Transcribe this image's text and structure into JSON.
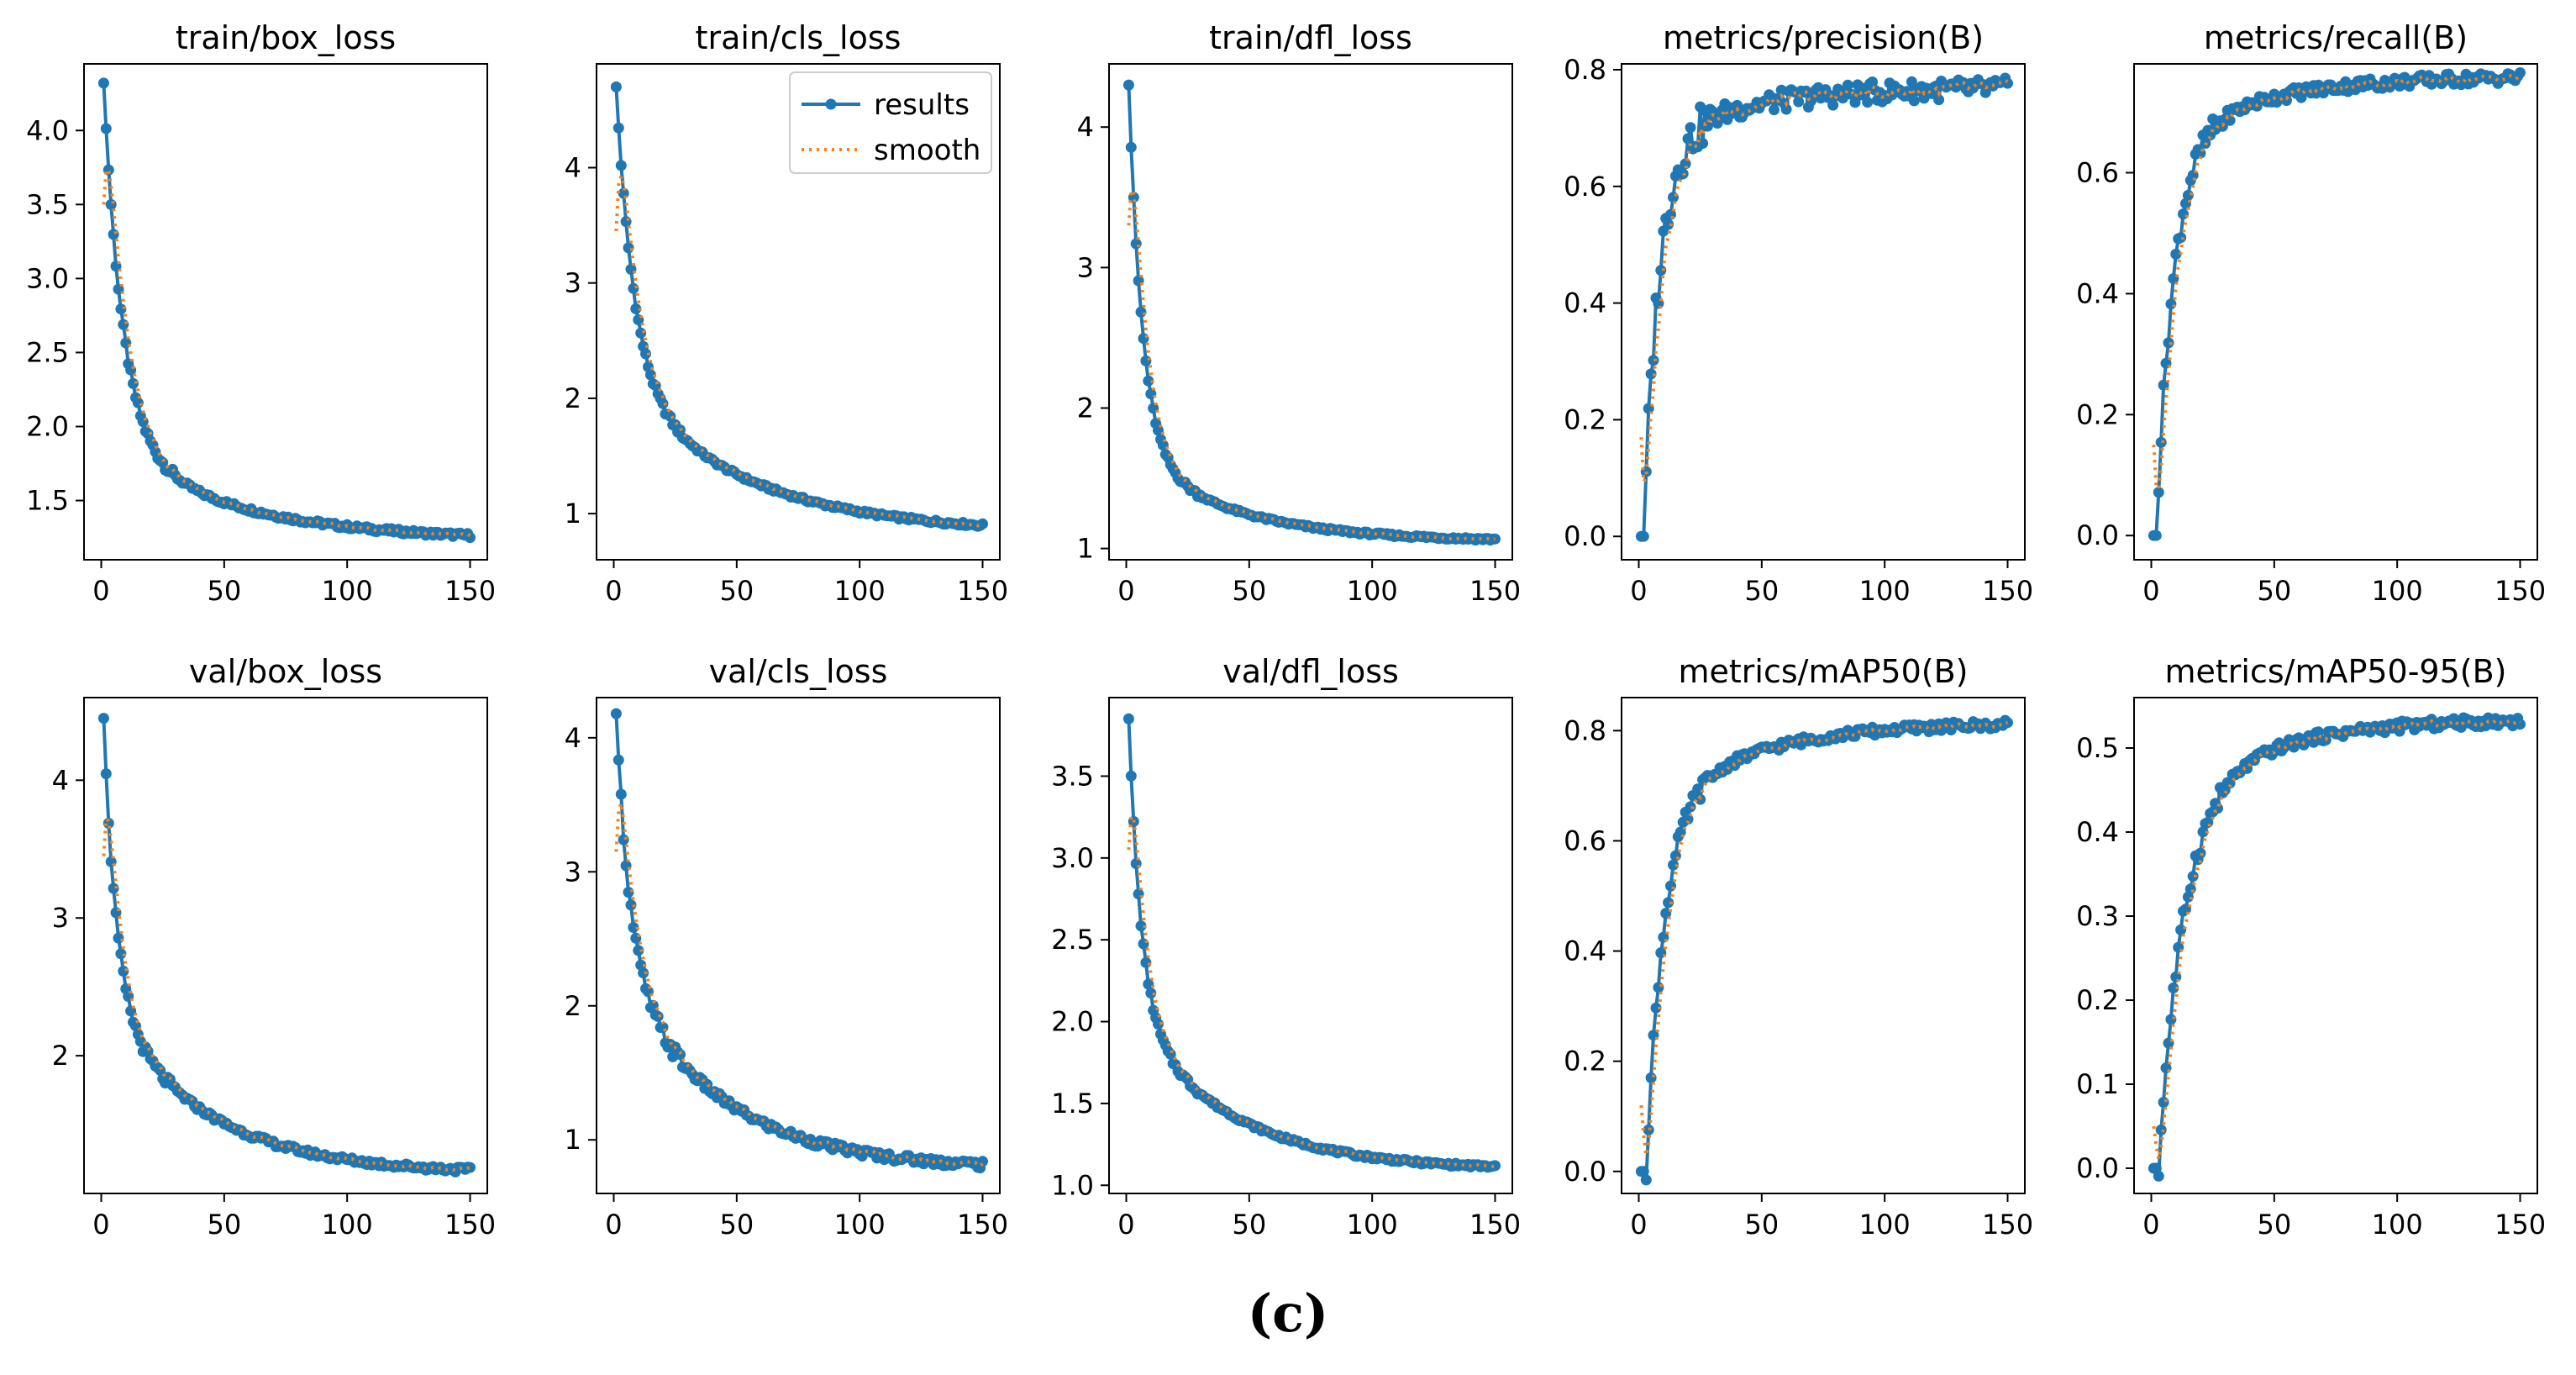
{
  "figure_caption": "(c)",
  "colors": {
    "results": "#1f77b4",
    "smooth": "#ff7f0e",
    "axis": "#000000"
  },
  "legend": {
    "entries": [
      "results",
      "smooth"
    ],
    "location": "upper-right of train/cls_loss"
  },
  "chart_data": [
    {
      "type": "line",
      "title": "train/box_loss",
      "xlim": [
        -7,
        157
      ],
      "ylim": [
        1.1,
        4.45
      ],
      "xticks": [
        0,
        50,
        100,
        150
      ],
      "yticks": [
        1.5,
        2.0,
        2.5,
        3.0,
        3.5,
        4.0
      ],
      "ytick_labels": [
        "1.5",
        "2.0",
        "2.5",
        "3.0",
        "3.5",
        "4.0"
      ],
      "model": {
        "kind": "decay",
        "start": 4.32,
        "end": 1.23,
        "rate": 0.13,
        "slow": 0.22,
        "slowrate": 0.02,
        "noise": 0.015
      },
      "smooth_start": 3.5,
      "series": [
        "results",
        "smooth"
      ]
    },
    {
      "type": "line",
      "title": "train/cls_loss",
      "xlim": [
        -7,
        157
      ],
      "ylim": [
        0.6,
        4.9
      ],
      "xticks": [
        0,
        50,
        100,
        150
      ],
      "yticks": [
        1,
        2,
        3,
        4
      ],
      "ytick_labels": [
        "1",
        "2",
        "3",
        "4"
      ],
      "model": {
        "kind": "decay",
        "start": 4.7,
        "end": 0.83,
        "rate": 0.14,
        "slow": 0.35,
        "slowrate": 0.02,
        "noise": 0.015
      },
      "smooth_start": 3.45,
      "series": [
        "results",
        "smooth"
      ],
      "legend": true
    },
    {
      "type": "line",
      "title": "train/dfl_loss",
      "xlim": [
        -7,
        157
      ],
      "ylim": [
        0.92,
        4.45
      ],
      "xticks": [
        0,
        50,
        100,
        150
      ],
      "yticks": [
        1,
        2,
        3,
        4
      ],
      "ytick_labels": [
        "1",
        "2",
        "3",
        "4"
      ],
      "model": {
        "kind": "decay",
        "start": 4.3,
        "end": 1.05,
        "rate": 0.18,
        "slow": 0.2,
        "slowrate": 0.025,
        "noise": 0.01
      },
      "smooth_start": 3.3,
      "series": [
        "results",
        "smooth"
      ]
    },
    {
      "type": "line",
      "title": "metrics/precision(B)",
      "xlim": [
        -7,
        157
      ],
      "ylim": [
        -0.04,
        0.81
      ],
      "xticks": [
        0,
        50,
        100,
        150
      ],
      "yticks": [
        0.0,
        0.2,
        0.4,
        0.6,
        0.8
      ],
      "ytick_labels": [
        "0.0",
        "0.2",
        "0.4",
        "0.6",
        "0.8"
      ],
      "model": {
        "kind": "rise",
        "start": 0.0,
        "end": 0.77,
        "rate": 0.16,
        "slow": 0.12,
        "slowrate": 0.025,
        "delay": 1,
        "noise": 0.018
      },
      "smooth_start": 0.17,
      "series": [
        "results",
        "smooth"
      ]
    },
    {
      "type": "line",
      "title": "metrics/recall(B)",
      "xlim": [
        -7,
        157
      ],
      "ylim": [
        -0.04,
        0.78
      ],
      "xticks": [
        0,
        50,
        100,
        150
      ],
      "yticks": [
        0.0,
        0.2,
        0.4,
        0.6
      ],
      "ytick_labels": [
        "0.0",
        "0.2",
        "0.4",
        "0.6"
      ],
      "model": {
        "kind": "rise",
        "start": 0.0,
        "end": 0.76,
        "rate": 0.14,
        "slow": 0.15,
        "slowrate": 0.025,
        "delay": 1,
        "noise": 0.01
      },
      "smooth_start": 0.15,
      "series": [
        "results",
        "smooth"
      ]
    },
    {
      "type": "line",
      "title": "val/box_loss",
      "xlim": [
        -7,
        157
      ],
      "ylim": [
        1.0,
        4.6
      ],
      "xticks": [
        0,
        50,
        100,
        150
      ],
      "yticks": [
        2,
        3,
        4
      ],
      "ytick_labels": [
        "2",
        "3",
        "4"
      ],
      "model": {
        "kind": "decay",
        "start": 4.45,
        "end": 1.14,
        "rate": 0.2,
        "slow": 0.38,
        "slowrate": 0.025,
        "noise": 0.02
      },
      "smooth_start": 3.45,
      "series": [
        "results",
        "smooth"
      ]
    },
    {
      "type": "line",
      "title": "val/cls_loss",
      "xlim": [
        -7,
        157
      ],
      "ylim": [
        0.6,
        4.3
      ],
      "xticks": [
        0,
        50,
        100,
        150
      ],
      "yticks": [
        1,
        2,
        3,
        4
      ],
      "ytick_labels": [
        "1",
        "2",
        "3",
        "4"
      ],
      "model": {
        "kind": "decay",
        "start": 4.18,
        "end": 0.78,
        "rate": 0.18,
        "slow": 0.45,
        "slowrate": 0.025,
        "noise": 0.03
      },
      "smooth_start": 3.15,
      "series": [
        "results",
        "smooth"
      ]
    },
    {
      "type": "line",
      "title": "val/dfl_loss",
      "xlim": [
        -7,
        157
      ],
      "ylim": [
        0.95,
        3.98
      ],
      "xticks": [
        0,
        50,
        100,
        150
      ],
      "yticks": [
        1.0,
        1.5,
        2.0,
        2.5,
        3.0,
        3.5
      ],
      "ytick_labels": [
        "1.0",
        "1.5",
        "2.0",
        "2.5",
        "3.0",
        "3.5"
      ],
      "model": {
        "kind": "decay",
        "start": 3.85,
        "end": 1.09,
        "rate": 0.2,
        "slow": 0.35,
        "slowrate": 0.025,
        "noise": 0.01
      },
      "smooth_start": 3.05,
      "series": [
        "results",
        "smooth"
      ]
    },
    {
      "type": "line",
      "title": "metrics/mAP50(B)",
      "xlim": [
        -7,
        157
      ],
      "ylim": [
        -0.04,
        0.86
      ],
      "xticks": [
        0,
        50,
        100,
        150
      ],
      "yticks": [
        0.0,
        0.2,
        0.4,
        0.6,
        0.8
      ],
      "ytick_labels": [
        "0.0",
        "0.2",
        "0.4",
        "0.6",
        "0.8"
      ],
      "model": {
        "kind": "rise",
        "start": 0.0,
        "end": 0.815,
        "rate": 0.14,
        "slow": 0.2,
        "slowrate": 0.025,
        "delay": 2,
        "noise": 0.008
      },
      "smooth_start": 0.12,
      "series": [
        "results",
        "smooth"
      ]
    },
    {
      "type": "line",
      "title": "metrics/mAP50-95(B)",
      "xlim": [
        -7,
        157
      ],
      "ylim": [
        -0.03,
        0.56
      ],
      "xticks": [
        0,
        50,
        100,
        150
      ],
      "yticks": [
        0.0,
        0.1,
        0.2,
        0.3,
        0.4,
        0.5
      ],
      "ytick_labels": [
        "0.0",
        "0.1",
        "0.2",
        "0.3",
        "0.4",
        "0.5"
      ],
      "model": {
        "kind": "rise",
        "start": 0.0,
        "end": 0.535,
        "rate": 0.1,
        "slow": 0.2,
        "slowrate": 0.025,
        "delay": 2,
        "noise": 0.006
      },
      "smooth_start": 0.05,
      "series": [
        "results",
        "smooth"
      ]
    }
  ]
}
